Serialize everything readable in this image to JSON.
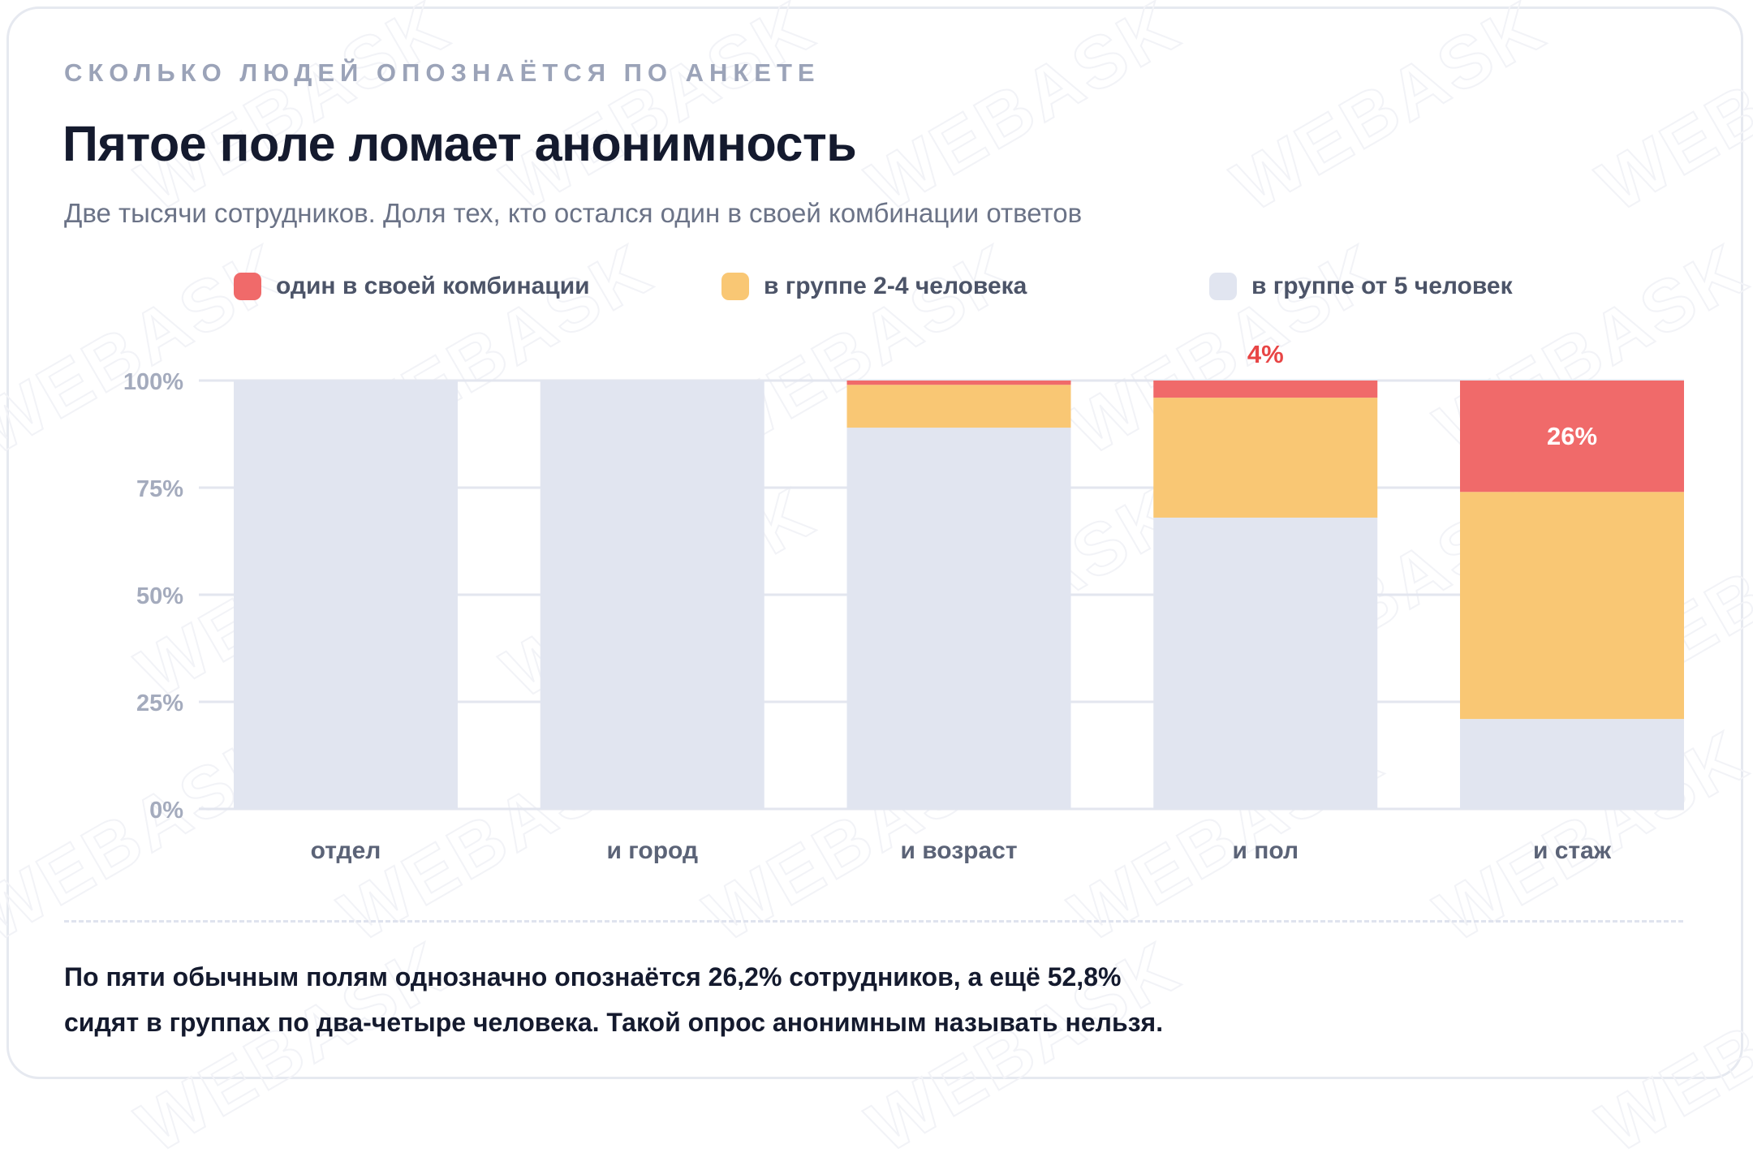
{
  "kicker": "СКОЛЬКО ЛЮДЕЙ ОПОЗНАЁТСЯ ПО АНКЕТЕ",
  "title": "Пятое поле ломает анонимность",
  "subtitle": "Две тысячи сотрудников. Доля тех, кто остался один в своей комбинации ответов",
  "watermark": "WEBASK",
  "legend": [
    {
      "label": "один в своей комбинации",
      "color": "#f06a6a"
    },
    {
      "label": "в группе 2-4 человека",
      "color": "#f9c774"
    },
    {
      "label": "в группе от 5 человек",
      "color": "#e1e5f0"
    }
  ],
  "chart_data": {
    "type": "bar",
    "stacked": true,
    "categories": [
      "отдел",
      "и город",
      "и возраст",
      "и пол",
      "и стаж"
    ],
    "series": [
      {
        "name": "в группе от 5 человек",
        "color": "#e1e5f0",
        "values": [
          100,
          100,
          89,
          68,
          21
        ]
      },
      {
        "name": "в группе 2-4 человека",
        "color": "#f9c774",
        "values": [
          0,
          0,
          10,
          28,
          53
        ]
      },
      {
        "name": "один в своей комбинации",
        "color": "#f06a6a",
        "values": [
          0,
          0,
          1,
          4,
          26
        ]
      }
    ],
    "ylim": [
      0,
      100
    ],
    "yticks": [
      "0%",
      "25%",
      "50%",
      "75%",
      "100%"
    ],
    "grid": true,
    "legend_position": "top",
    "annotations": [
      {
        "category": "и пол",
        "text": "4%",
        "placement": "above",
        "color": "#e84545"
      },
      {
        "category": "и стаж",
        "text": "26%",
        "placement": "inside-top",
        "color": "#ffffff"
      }
    ]
  },
  "conclusion": [
    "По пяти обычным полям однозначно опознаётся 26,2% сотрудников, а ещё 52,8%",
    "сидят в группах по два-четыре человека. Такой опрос анонимным называть нельзя."
  ]
}
